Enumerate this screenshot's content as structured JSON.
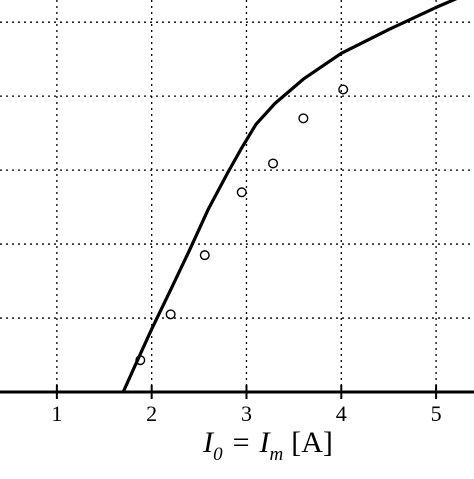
{
  "chart_data": {
    "type": "scatter",
    "title": "",
    "xlabel": "I_0 = I_m [A]",
    "xlabel_parts": {
      "lhs_main": "I",
      "lhs_sub": "0",
      "equals": "=",
      "rhs_main": "I",
      "rhs_sub": "m",
      "unit": "[A]"
    },
    "ylabel": "",
    "xlim": [
      0.4,
      5.4
    ],
    "ylim": [
      0,
      5.3
    ],
    "x_ticks": [
      1,
      2,
      3,
      4,
      5
    ],
    "x_tick_labels": [
      "1",
      "2",
      "3",
      "4",
      "5"
    ],
    "y_gridlines": [
      1,
      2,
      3,
      4,
      5
    ],
    "grid": "dotted",
    "series": [
      {
        "kind": "fit-line",
        "x": [
          1.7,
          1.85,
          2.0,
          2.2,
          2.4,
          2.6,
          2.8,
          2.95,
          3.1,
          3.3,
          3.6,
          4.0,
          4.5,
          5.0,
          5.4
        ],
        "y": [
          0,
          0.43,
          0.85,
          1.38,
          1.92,
          2.48,
          2.96,
          3.3,
          3.62,
          3.9,
          4.23,
          4.58,
          4.9,
          5.2,
          5.42
        ]
      },
      {
        "kind": "measured-points",
        "x": [
          1.88,
          2.2,
          2.56,
          2.95,
          3.28,
          3.6,
          4.02
        ],
        "y": [
          0.43,
          1.05,
          1.85,
          2.7,
          3.09,
          3.7,
          4.09
        ]
      }
    ],
    "colors": {
      "line": "#000000",
      "grid": "#000000",
      "background": "#ffffff"
    }
  }
}
